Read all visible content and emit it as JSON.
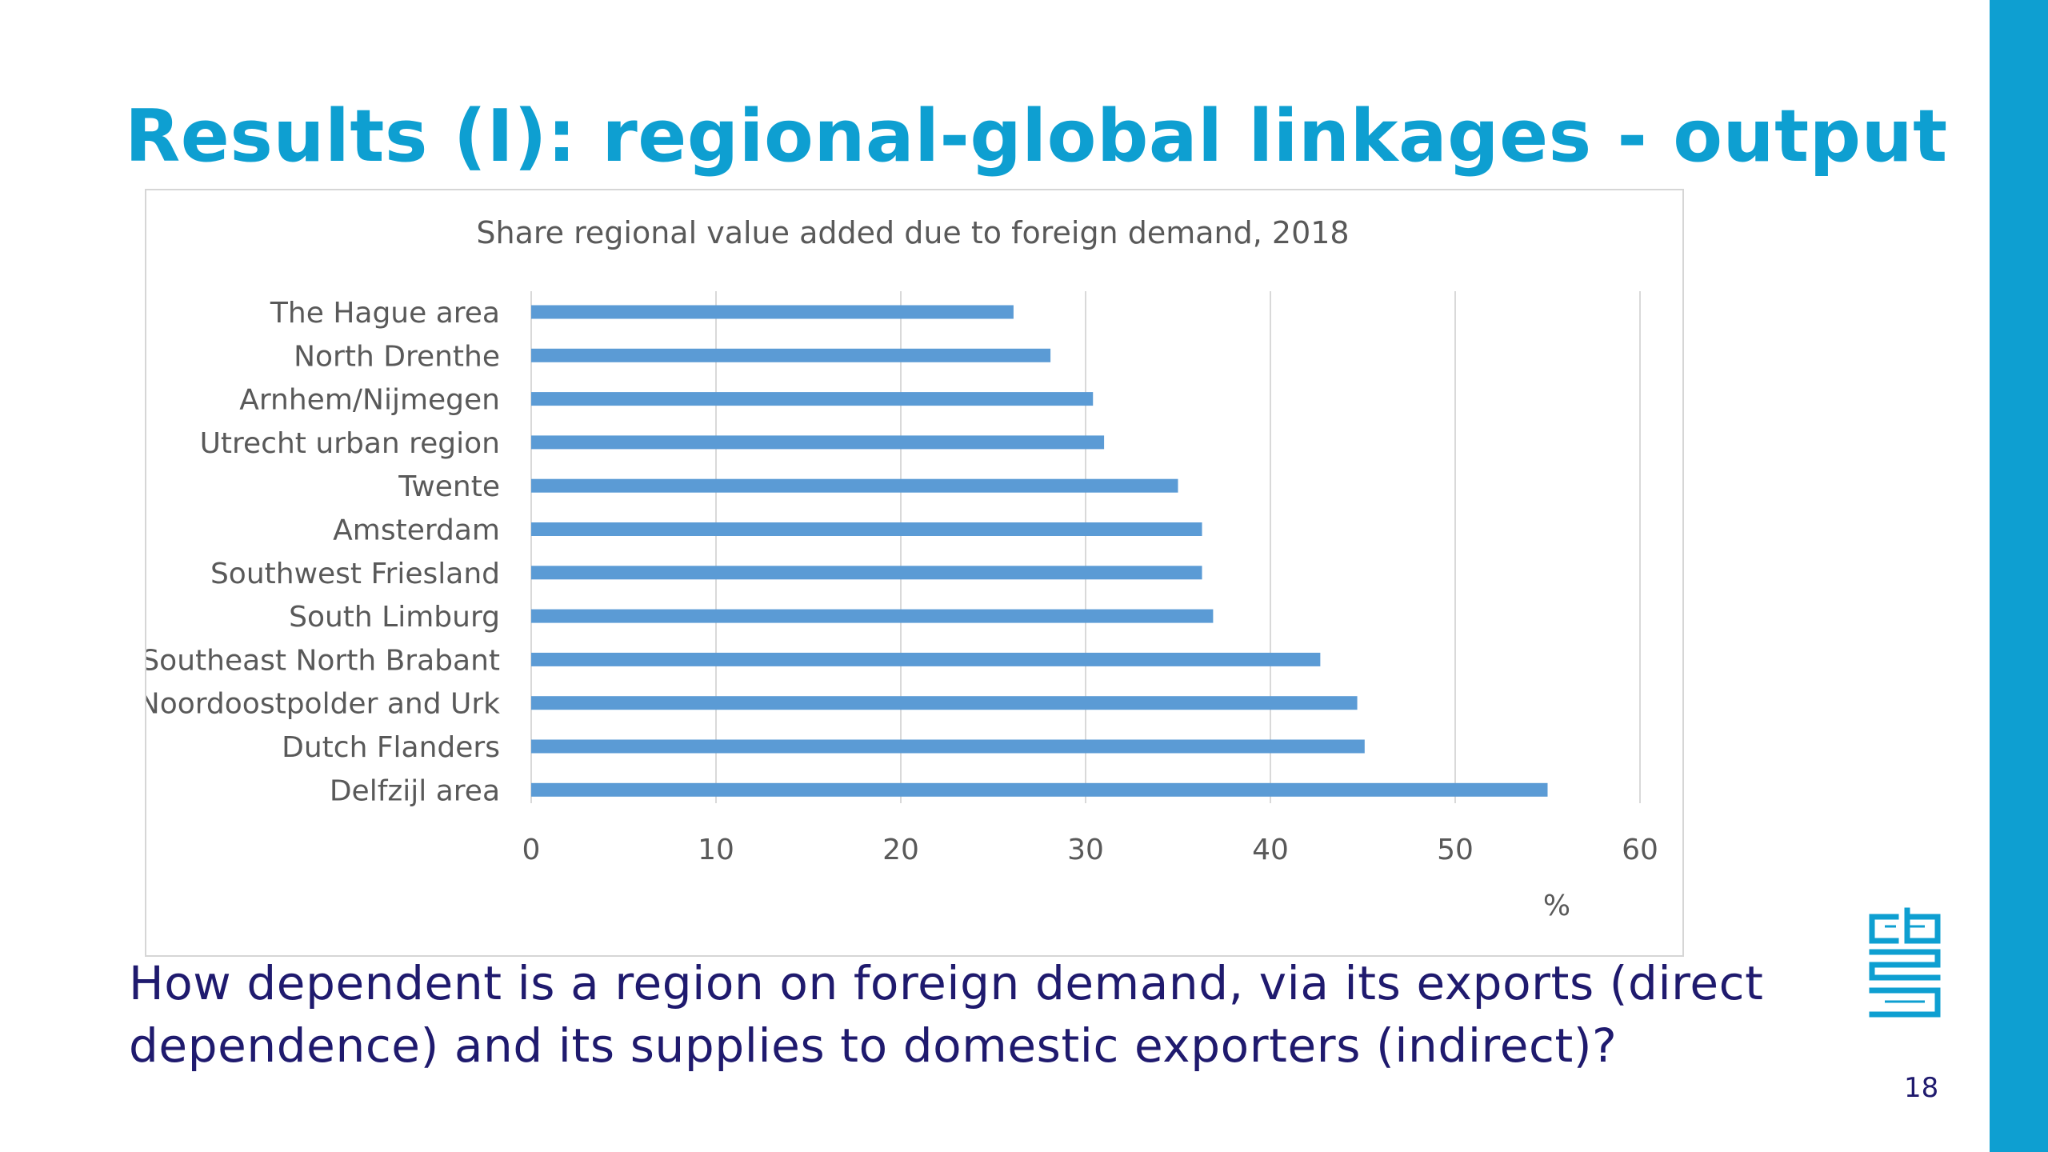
{
  "slide": {
    "title": "Results (I): regional-global linkages - output",
    "question": "How dependent is a region on foreign demand, via its exports (direct dependence) and its supplies to domestic exporters (indirect)?",
    "page_number": "18",
    "accent_color": "#0e9fd1",
    "text_color": "#1f1a6e",
    "logo": "cbs-logo"
  },
  "chart_data": {
    "type": "bar",
    "orientation": "horizontal",
    "title": "Share regional value added due to foreign demand, 2018",
    "xlabel": "%",
    "ylabel": "",
    "categories": [
      "The Hague area",
      "North Drenthe",
      "Arnhem/Nijmegen",
      "Utrecht urban region",
      "Twente",
      "Amsterdam",
      "Southwest Friesland",
      "South Limburg",
      "Southeast North Brabant",
      "Noordoostpolder and Urk",
      "Dutch Flanders",
      "Delfzijl area"
    ],
    "values": [
      26.1,
      28.1,
      30.4,
      31.0,
      35.0,
      36.3,
      36.3,
      36.9,
      42.7,
      44.7,
      45.1,
      55.0
    ],
    "xlim": [
      0,
      60
    ],
    "xticks": [
      0,
      10,
      20,
      30,
      40,
      50,
      60
    ],
    "grid": true,
    "bar_color": "#5b9bd5",
    "grid_color": "#d9d9d9"
  }
}
